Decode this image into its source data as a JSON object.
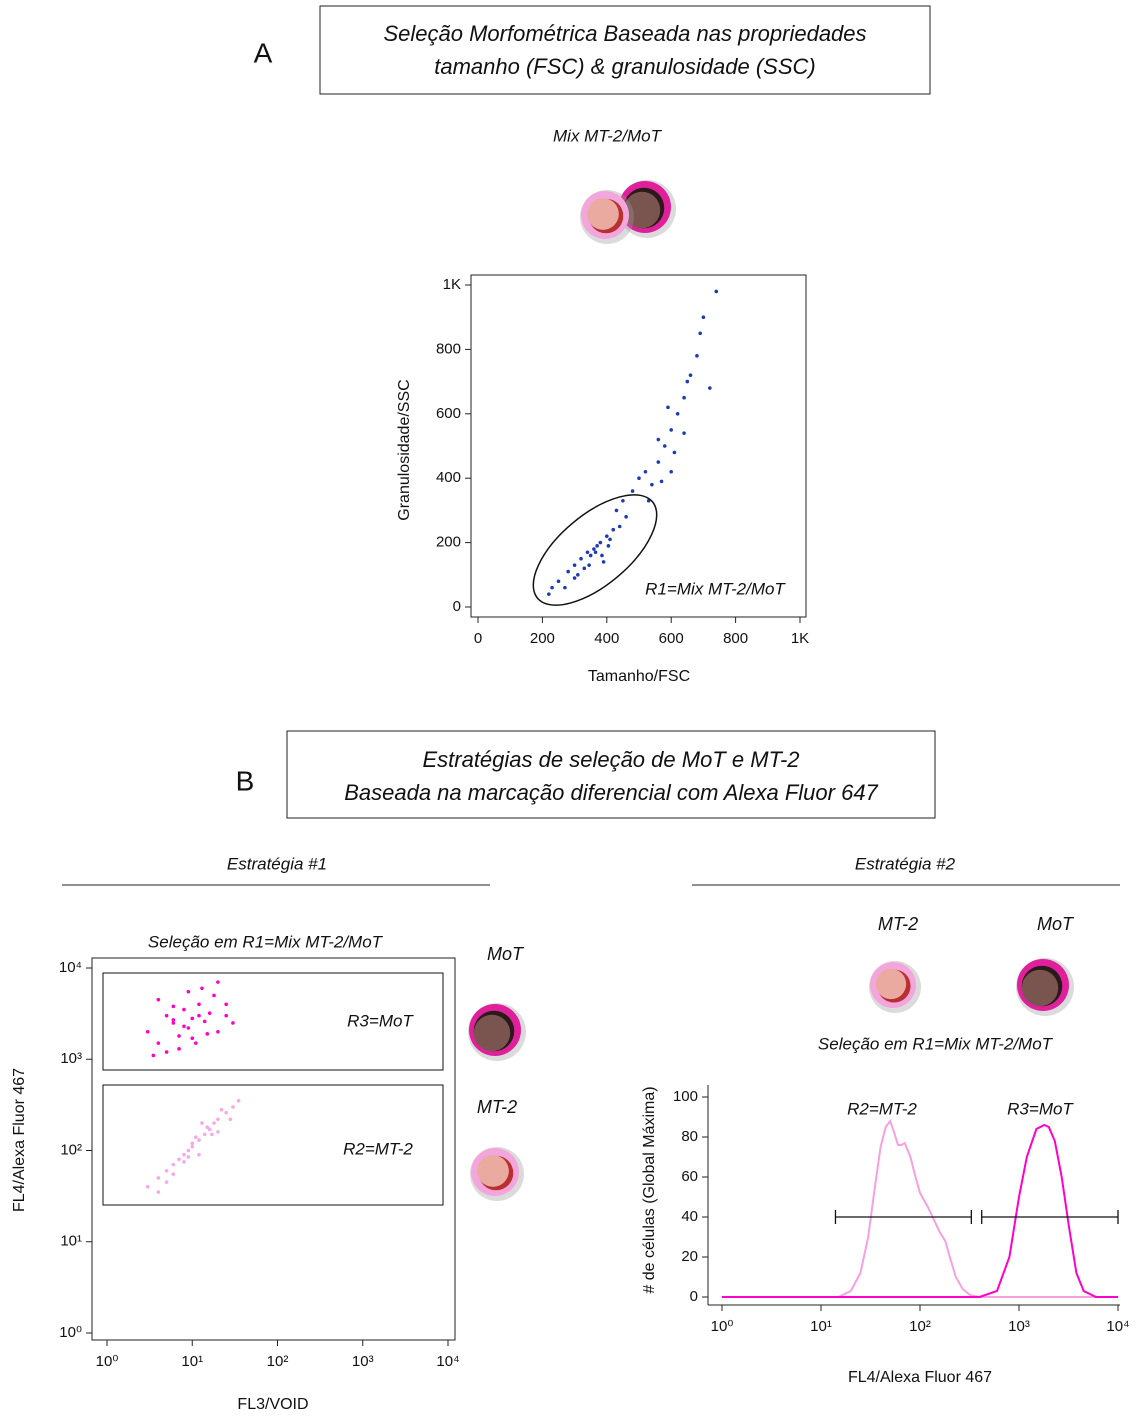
{
  "panel_a": {
    "label": "A",
    "box_lines": [
      "Seleção Morfométrica Baseada nas propriedades",
      "tamanho (FSC) & granulosidade (SSC)"
    ],
    "sample_title": "Mix MT-2/MoT"
  },
  "panel_b": {
    "label": "B",
    "box_lines": [
      "Estratégias de seleção de MoT e MT-2",
      "Baseada na marcação diferencial com Alexa Fluor 647"
    ],
    "strategy_1": {
      "title": "Estratégia #1",
      "cell_labels": [
        "MoT",
        "MT-2"
      ]
    },
    "strategy_2": {
      "title": "Estratégia #2",
      "cell_labels": [
        "MT-2",
        "MoT"
      ]
    }
  },
  "chart_data": [
    {
      "type": "scatter",
      "xlabel": "Tamanho/FSC",
      "ylabel": "Granulosidade/SSC",
      "color": "#1f3bb3",
      "x": [
        250,
        280,
        300,
        320,
        340,
        360,
        380,
        400,
        420,
        300,
        330,
        350,
        370,
        390,
        410,
        440,
        460,
        270,
        310,
        345,
        365,
        385,
        405,
        430,
        450,
        480,
        500,
        520,
        540,
        560,
        580,
        600,
        620,
        640,
        660,
        680,
        700,
        530,
        560,
        590,
        610,
        650,
        690,
        720,
        640,
        600,
        570,
        230,
        220,
        740
      ],
      "values": [
        80,
        110,
        130,
        150,
        170,
        180,
        200,
        220,
        240,
        90,
        120,
        160,
        190,
        140,
        210,
        250,
        280,
        60,
        100,
        130,
        170,
        160,
        190,
        300,
        330,
        360,
        400,
        420,
        380,
        450,
        500,
        550,
        600,
        650,
        720,
        780,
        900,
        330,
        520,
        620,
        480,
        700,
        850,
        680,
        540,
        420,
        390,
        60,
        40,
        980
      ],
      "xlim": [
        0,
        1000
      ],
      "ylim": [
        0,
        1000
      ],
      "xticks": [
        0,
        200,
        400,
        600,
        800,
        {
          "value": 1000,
          "label": "1K"
        }
      ],
      "yticks": [
        0,
        200,
        400,
        600,
        800,
        {
          "value": 1000,
          "label": "1K"
        }
      ],
      "gates": [
        {
          "label": "R1=Mix MT-2/MoT"
        }
      ]
    },
    {
      "type": "scatter",
      "title": "Seleção em R1=Mix MT-2/MoT",
      "xlabel": "FL3/VOID",
      "ylabel": "FL4/Alexa Fluor 467",
      "xscale": "log",
      "yscale": "log",
      "series": [
        {
          "color": "#ff00cc",
          "x": [
            3,
            4,
            5,
            6,
            7,
            8,
            9,
            10,
            12,
            14,
            16,
            18,
            20,
            25,
            30,
            5,
            7,
            9,
            11,
            13,
            4,
            6,
            8,
            10,
            15,
            20,
            3.5,
            12,
            25,
            6
          ],
          "values": [
            2000,
            1500,
            3000,
            2500,
            1800,
            3500,
            2200,
            2800,
            4000,
            2600,
            3200,
            5000,
            2000,
            3000,
            2500,
            1200,
            1300,
            5500,
            1500,
            6000,
            4500,
            3800,
            2300,
            1700,
            1900,
            7000,
            1100,
            3000,
            4000,
            2700
          ]
        },
        {
          "color": "#f7a8e6",
          "x": [
            3,
            4,
            5,
            5,
            6,
            7,
            8,
            9,
            10,
            12,
            14,
            16,
            18,
            20,
            25,
            30,
            35,
            6,
            8,
            10,
            12,
            15,
            20,
            4,
            9,
            11,
            13,
            17,
            22,
            28
          ],
          "values": [
            40,
            50,
            60,
            45,
            70,
            80,
            75,
            100,
            110,
            130,
            150,
            170,
            200,
            220,
            260,
            300,
            350,
            55,
            90,
            120,
            90,
            180,
            160,
            35,
            85,
            140,
            200,
            150,
            280,
            220
          ]
        }
      ],
      "xlim": [
        1,
        10000
      ],
      "ylim": [
        1,
        10000
      ],
      "xticks": [
        {
          "value": 1,
          "label": "10⁰"
        },
        {
          "value": 10,
          "label": "10¹"
        },
        {
          "value": 100,
          "label": "10²"
        },
        {
          "value": 1000,
          "label": "10³"
        },
        {
          "value": 10000,
          "label": "10⁴"
        }
      ],
      "yticks": [
        {
          "value": 1,
          "label": "10⁰"
        },
        {
          "value": 10,
          "label": "10¹"
        },
        {
          "value": 100,
          "label": "10²"
        },
        {
          "value": 1000,
          "label": "10³"
        },
        {
          "value": 10000,
          "label": "10⁴"
        }
      ],
      "gates": [
        {
          "label": "R3=MoT"
        },
        {
          "label": "R2=MT-2"
        }
      ]
    },
    {
      "type": "line",
      "title": "Seleção em R1=Mix MT-2/MoT",
      "xlabel": "FL4/Alexa Fluor 467",
      "ylabel": "# de células (Global Máxima)",
      "xscale": "log",
      "series": [
        {
          "color": "#f7a0e0",
          "x": [
            1,
            15,
            20,
            25,
            30,
            35,
            40,
            45,
            50,
            55,
            60,
            65,
            70,
            80,
            90,
            100,
            120,
            140,
            160,
            180,
            200,
            230,
            270,
            320,
            400,
            10000
          ],
          "values": [
            0,
            0,
            3,
            12,
            30,
            55,
            75,
            85,
            88,
            82,
            76,
            76,
            77,
            70,
            60,
            52,
            45,
            38,
            32,
            28,
            20,
            10,
            4,
            1,
            0,
            0
          ]
        },
        {
          "color": "#ff00cc",
          "x": [
            1,
            400,
            600,
            800,
            1000,
            1200,
            1500,
            1800,
            2000,
            2300,
            2700,
            3200,
            3800,
            4500,
            6000,
            10000
          ],
          "values": [
            0,
            0,
            3,
            20,
            50,
            70,
            84,
            86,
            85,
            78,
            60,
            35,
            12,
            3,
            0,
            0
          ]
        }
      ],
      "xlim": [
        1,
        10000
      ],
      "ylim": [
        0,
        100
      ],
      "xticks": [
        {
          "value": 1,
          "label": "10⁰"
        },
        {
          "value": 10,
          "label": "10¹"
        },
        {
          "value": 100,
          "label": "10²"
        },
        {
          "value": 1000,
          "label": "10³"
        },
        {
          "value": 10000,
          "label": "10⁴"
        }
      ],
      "yticks": [
        0,
        20,
        40,
        60,
        80,
        100
      ],
      "gates": [
        {
          "label": "R2=MT-2",
          "range": [
            14,
            330
          ],
          "level": 40
        },
        {
          "label": "R3=MoT",
          "range": [
            420,
            10000
          ],
          "level": 40
        }
      ]
    }
  ]
}
